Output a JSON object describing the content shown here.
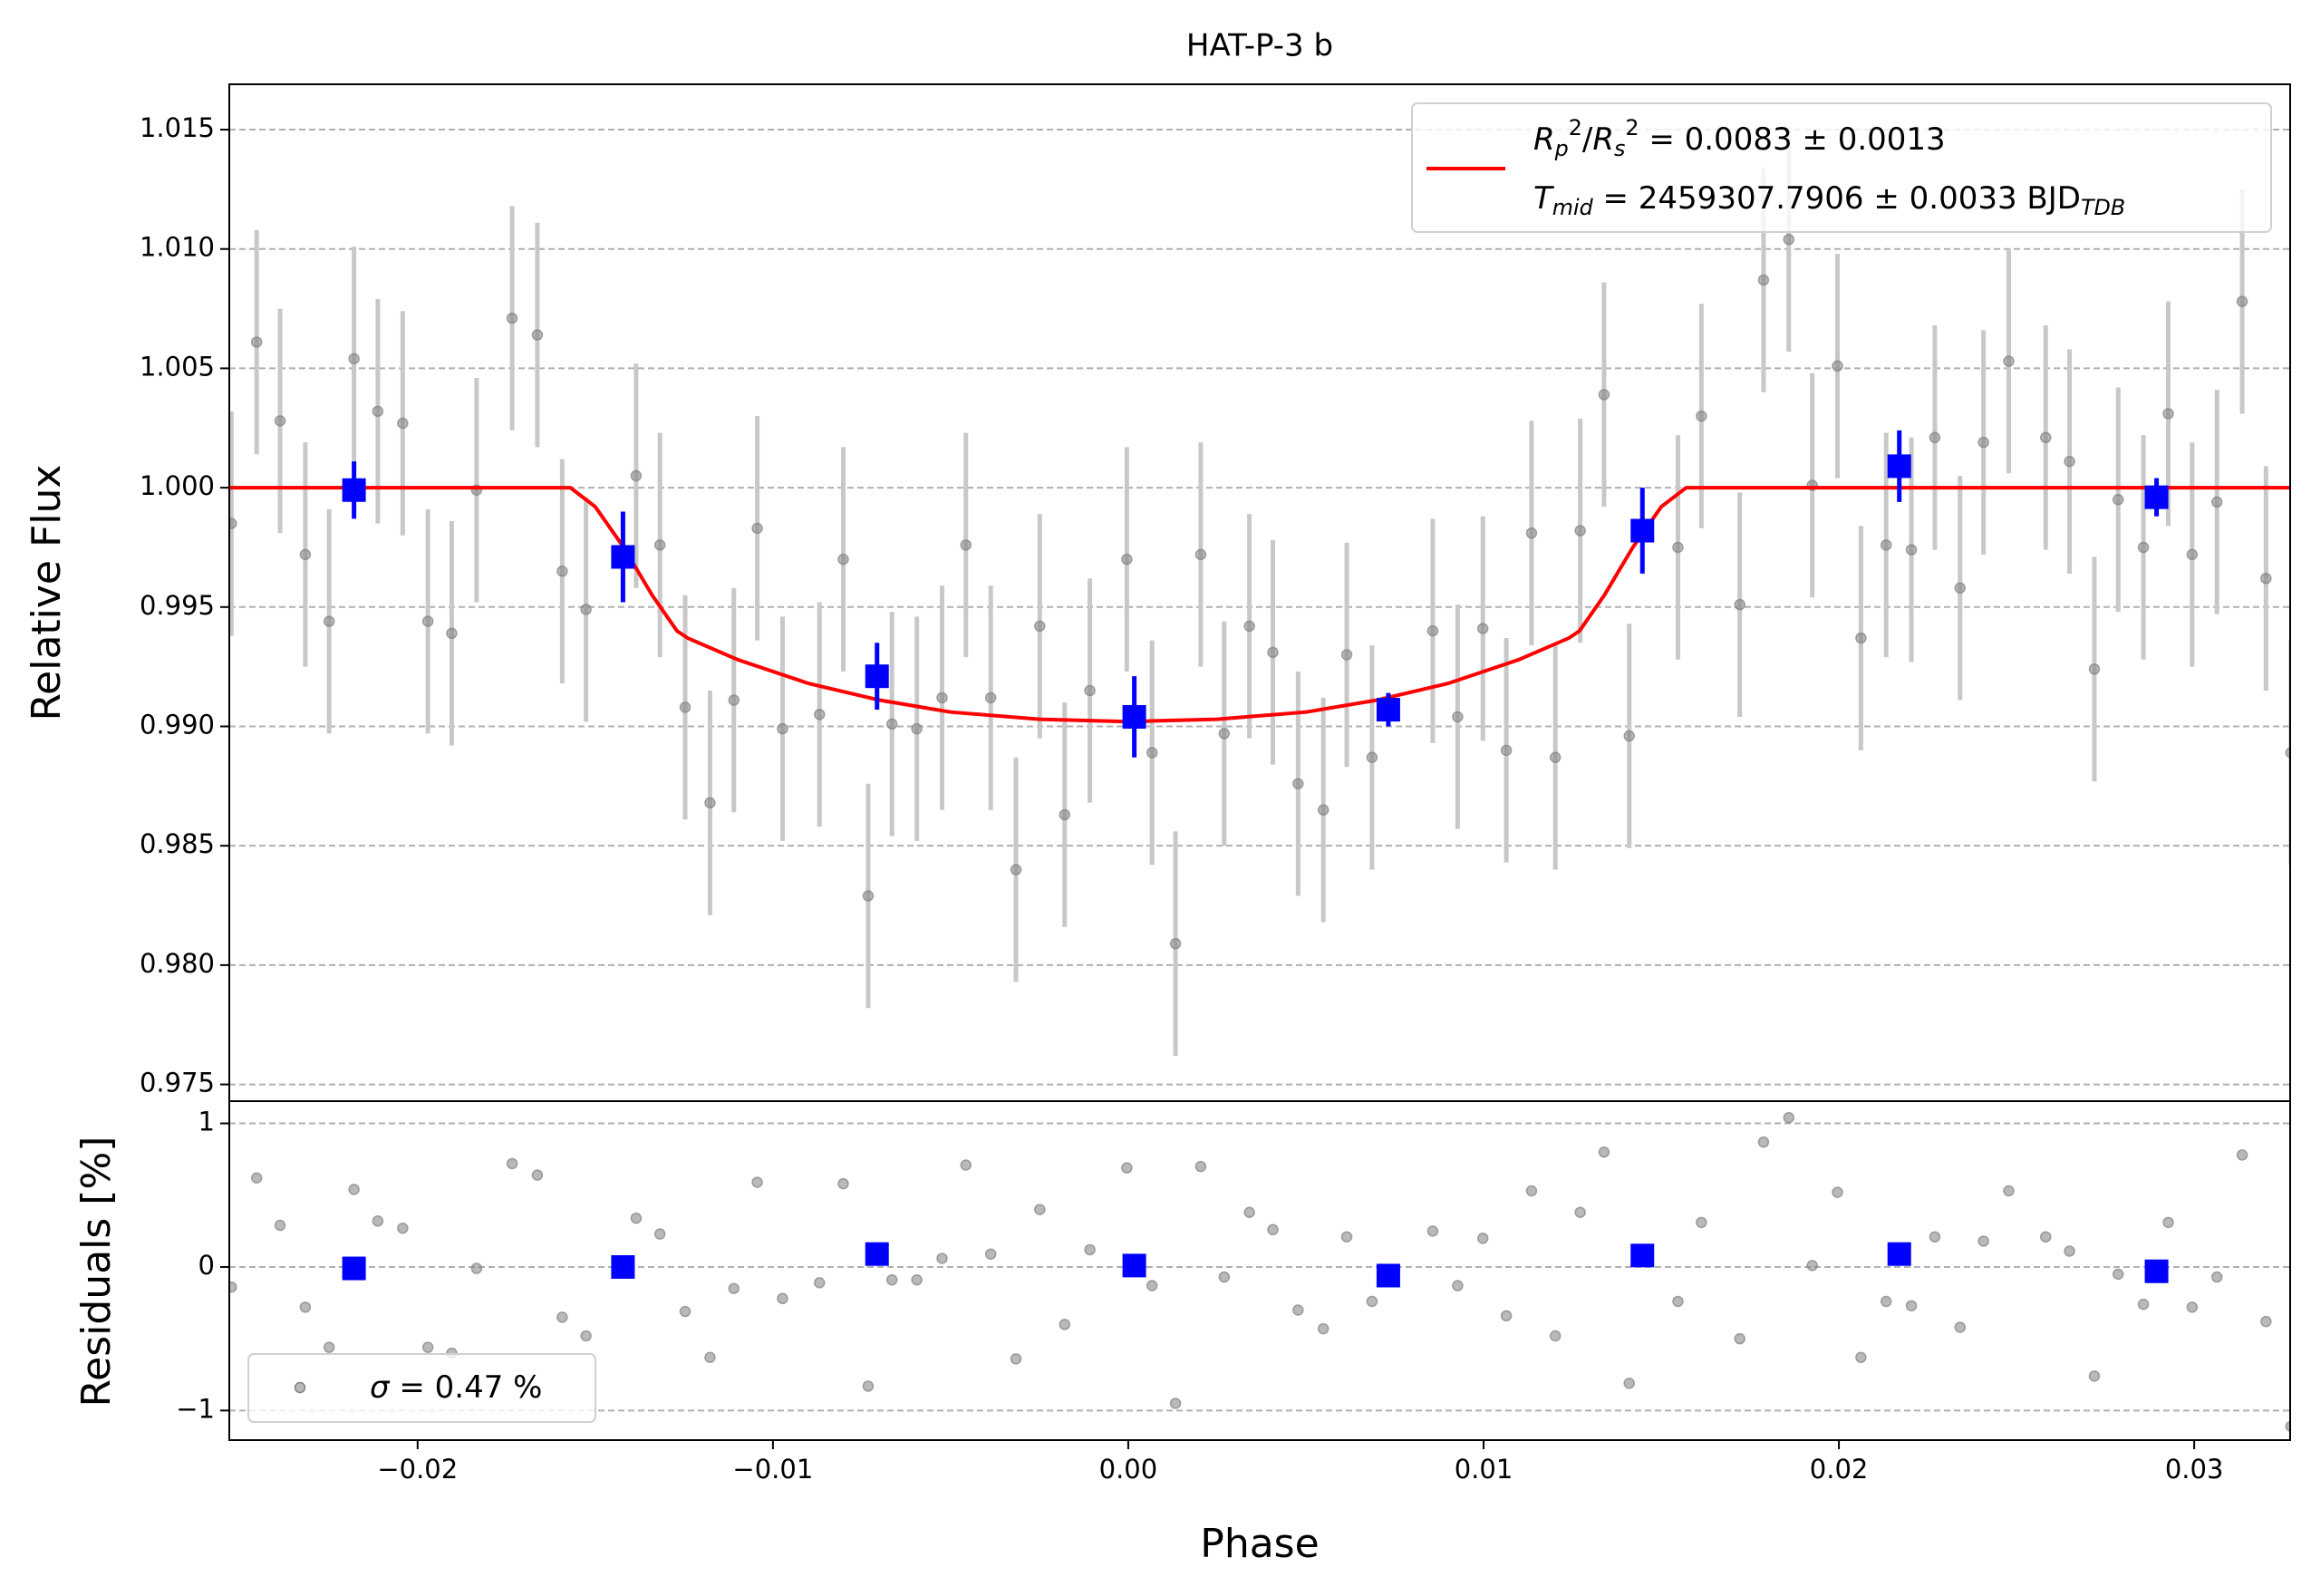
{
  "chart_data": {
    "type": "scatter",
    "title": "HAT-P-3 b",
    "xlabel": "Phase",
    "ylabel": "Relative Flux",
    "residual_ylabel": "Residuals [%]",
    "grid": true,
    "xlim": [
      -0.0253,
      0.0327
    ],
    "xticks": [
      {
        "value": -0.02,
        "label": "−0.02"
      },
      {
        "value": -0.01,
        "label": "−0.01"
      },
      {
        "value": 0,
        "label": "0.00"
      },
      {
        "value": 0.01,
        "label": "0.01"
      },
      {
        "value": 0.02,
        "label": "0.02"
      },
      {
        "value": 0.03,
        "label": "0.03"
      }
    ],
    "ylim": [
      0.9743,
      1.0169
    ],
    "yticks": [
      0.975,
      {
        "value": 0.98,
        "label": "0.980"
      },
      0.985,
      {
        "value": 0.99,
        "label": "0.990"
      },
      0.995,
      {
        "value": 1,
        "label": "1.000"
      },
      1.005,
      {
        "value": 1.01,
        "label": "1.010"
      },
      1.015
    ],
    "residual_ylim": [
      -1.206,
      1.155
    ],
    "residual_yticks": [
      {
        "value": -1,
        "label": "−1"
      },
      0,
      1
    ],
    "data": {
      "color": "#808080",
      "error_color": "#c8c8c8",
      "flux_error": 0.0047,
      "phase": [
        -0.02524,
        -0.02453,
        -0.02387,
        -0.02316,
        -0.02249,
        -0.02179,
        -0.02112,
        -0.02042,
        -0.01971,
        -0.01904,
        -0.01834,
        -0.01734,
        -0.01663,
        -0.01593,
        -0.01526,
        -0.01385,
        -0.01318,
        -0.01247,
        -0.01177,
        -0.0111,
        -0.01044,
        -0.00973,
        -0.00869,
        -0.00802,
        -0.00732,
        -0.00665,
        -0.00595,
        -0.00524,
        -0.00457,
        -0.00387,
        -0.00316,
        -0.00249,
        -0.00179,
        -0.00108,
        -4e-05,
        0.00067,
        0.00133,
        0.00204,
        0.0027,
        0.00341,
        0.00407,
        0.00478,
        0.00549,
        0.00615,
        0.00686,
        0.00857,
        0.00927,
        0.00998,
        0.01064,
        0.01135,
        0.01202,
        0.01272,
        0.01339,
        0.0141,
        0.01547,
        0.01613,
        0.01721,
        0.01788,
        0.01859,
        0.01925,
        0.01996,
        0.02062,
        0.02133,
        0.02204,
        0.0227,
        0.02341,
        0.02407,
        0.02478,
        0.02582,
        0.02649,
        0.02719,
        0.02786,
        0.02857,
        0.02927,
        0.02994,
        0.03064,
        0.03135,
        0.03202,
        0.03272
      ],
      "flux": [
        0.9985,
        1.0061,
        1.0028,
        0.9972,
        0.9944,
        1.0054,
        1.0032,
        1.0027,
        0.9944,
        0.9939,
        0.9999,
        1.0071,
        1.0064,
        0.9965,
        0.9949,
        1.0005,
        0.9976,
        0.9908,
        0.9868,
        0.9911,
        0.9983,
        0.9899,
        0.9905,
        0.997,
        0.9829,
        0.9901,
        0.9899,
        0.9912,
        0.9976,
        0.9912,
        0.984,
        0.9942,
        0.9863,
        0.9915,
        0.997,
        0.9889,
        0.9809,
        0.9972,
        0.9897,
        0.9942,
        0.9931,
        0.9876,
        0.9865,
        0.993,
        0.9887,
        0.994,
        0.9904,
        0.9941,
        0.989,
        0.9981,
        0.9887,
        0.9982,
        1.0039,
        0.9896,
        0.9975,
        1.003,
        0.9951,
        1.0087,
        1.0104,
        1.0001,
        1.0051,
        0.9937,
        0.9976,
        0.9974,
        1.0021,
        0.9958,
        1.0019,
        1.0053,
        1.0021,
        1.0011,
        0.9924,
        0.9995,
        0.9975,
        1.0031,
        0.9972,
        0.9994,
        1.0078,
        0.9962,
        0.9889
      ],
      "residuals": [
        -0.14,
        0.62,
        0.29,
        -0.28,
        -0.56,
        0.54,
        0.32,
        0.27,
        -0.56,
        -0.6,
        -0.01,
        0.72,
        0.64,
        -0.35,
        -0.48,
        0.34,
        0.23,
        -0.31,
        -0.63,
        -0.15,
        0.59,
        -0.22,
        -0.11,
        0.58,
        -0.83,
        -0.09,
        -0.09,
        0.06,
        0.71,
        0.09,
        -0.64,
        0.4,
        -0.4,
        0.12,
        0.69,
        -0.13,
        -0.95,
        0.7,
        -0.07,
        0.38,
        0.26,
        -0.3,
        -0.43,
        0.21,
        -0.24,
        0.25,
        -0.13,
        0.2,
        -0.34,
        0.53,
        -0.48,
        0.38,
        0.8,
        -0.81,
        -0.24,
        0.31,
        -0.5,
        0.87,
        1.04,
        0.01,
        0.52,
        -0.63,
        -0.24,
        -0.27,
        0.21,
        -0.42,
        0.18,
        0.53,
        0.21,
        0.11,
        -0.76,
        -0.05,
        -0.26,
        0.31,
        -0.28,
        -0.07,
        0.78,
        -0.38,
        -1.11
      ]
    },
    "binned": {
      "color": "#0000ff",
      "phase": [
        -0.02179,
        -0.01422,
        -0.00707,
        0.00017,
        0.00732,
        0.01447,
        0.0217,
        0.02894
      ],
      "flux": [
        0.9999,
        0.9971,
        0.9921,
        0.9904,
        0.9907,
        0.9982,
        1.0009,
        0.9996
      ],
      "flux_error": [
        0.0012,
        0.0019,
        0.0014,
        0.0017,
        0.0007,
        0.0018,
        0.0015,
        0.0008
      ],
      "residuals": [
        -0.01,
        0,
        0.09,
        0.01,
        -0.06,
        0.08,
        0.09,
        -0.03
      ]
    },
    "model": {
      "color": "#ff0000",
      "phase": [
        -0.0253,
        -0.0157,
        -0.015,
        -0.0142,
        -0.0134,
        -0.0127,
        -0.0124,
        -0.011,
        -0.009,
        -0.007,
        -0.005,
        -0.0025,
        0,
        0.0025,
        0.005,
        0.007,
        0.009,
        0.011,
        0.0124,
        0.0127,
        0.0134,
        0.0142,
        0.015,
        0.0157,
        0.0327
      ],
      "flux": [
        1,
        1,
        0.9992,
        0.9975,
        0.9955,
        0.994,
        0.9937,
        0.9928,
        0.9918,
        0.9911,
        0.9906,
        0.9903,
        0.9902,
        0.9903,
        0.9906,
        0.9911,
        0.9918,
        0.9928,
        0.9937,
        0.994,
        0.9955,
        0.9975,
        0.9992,
        1,
        1
      ],
      "legend": [
        [
          {
            "text": "R",
            "italic": true
          },
          {
            "text": "p",
            "italic": true,
            "shift": "sub"
          },
          {
            "text": "2",
            "shift": "super"
          },
          {
            "text": "/"
          },
          {
            "text": "R",
            "italic": true
          },
          {
            "text": "s",
            "italic": true,
            "shift": "sub"
          },
          {
            "text": "2",
            "shift": "super"
          },
          {
            "text": " = 0.0083 ± 0.0013"
          }
        ],
        [
          {
            "text": "T",
            "italic": true
          },
          {
            "text": "mid",
            "italic": true,
            "shift": "sub"
          },
          {
            "text": " = 2459307.7906 ± 0.0033 BJD"
          },
          {
            "text": "TDB",
            "italic": true,
            "shift": "sub"
          }
        ]
      ]
    },
    "legend_position": "upper right",
    "residual_legend": [
      {
        "text": "σ",
        "italic": true
      },
      {
        "text": " = 0.47 %"
      }
    ],
    "residual_legend_position": "lower left"
  }
}
